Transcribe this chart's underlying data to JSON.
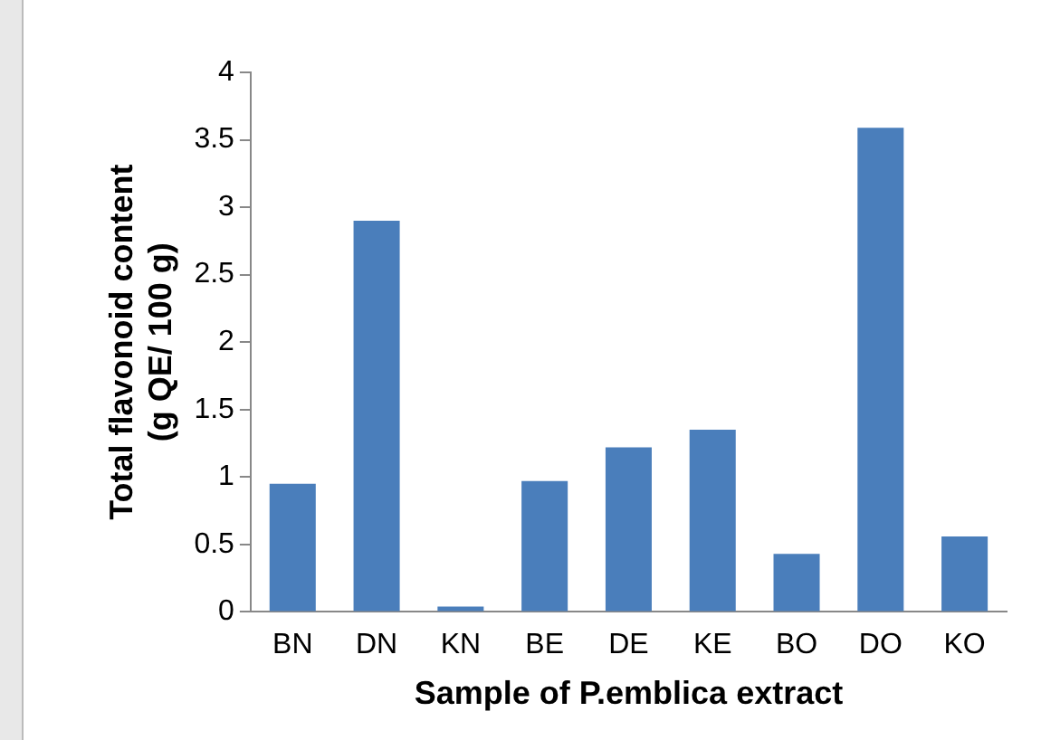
{
  "chart_data": {
    "type": "bar",
    "xlabel": "Sample of P.emblica extract",
    "ylabel": [
      "Total flavonoid content",
      "(g QE/ 100 g)"
    ],
    "categories": [
      "BN",
      "DN",
      "KN",
      "BE",
      "DE",
      "KE",
      "BO",
      "DO",
      "KO"
    ],
    "values": [
      0.95,
      2.9,
      0.04,
      0.97,
      1.22,
      1.35,
      0.43,
      3.59,
      0.56
    ],
    "color": "#4a7ebb",
    "ylim": [
      0,
      4
    ],
    "yticks": [
      0,
      0.5,
      1,
      1.5,
      2,
      2.5,
      3,
      3.5,
      4
    ],
    "grid": false,
    "legend": false
  }
}
